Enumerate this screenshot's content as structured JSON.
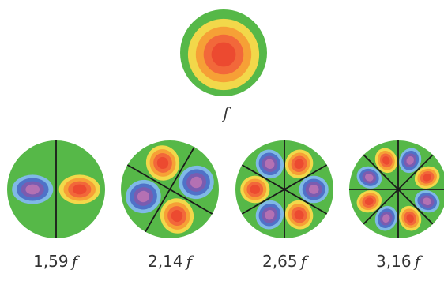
{
  "modes": [
    {
      "id": "fundamental",
      "number": "",
      "symbol": "f",
      "nodal_diameters": 0
    },
    {
      "id": "mode-159",
      "number": "1,59",
      "symbol": "f",
      "nodal_diameters": 1
    },
    {
      "id": "mode-214",
      "number": "2,14",
      "symbol": "f",
      "nodal_diameters": 2
    },
    {
      "id": "mode-265",
      "number": "2,65",
      "symbol": "f",
      "nodal_diameters": 3
    },
    {
      "id": "mode-316",
      "number": "3,16",
      "symbol": "f",
      "nodal_diameters": 4
    }
  ],
  "colors": {
    "background_green": "#56b848",
    "ring_yellow": "#f2d84a",
    "ring_orange": "#f6a036",
    "ring_red_orange": "#f2683a",
    "center_red": "#ec4a30",
    "ring_light_blue": "#7fb9e6",
    "ring_blue": "#4f72c8",
    "ring_purple": "#7a5cb0",
    "center_violet": "#b471b3",
    "nodal_line": "#1a1a1a"
  }
}
